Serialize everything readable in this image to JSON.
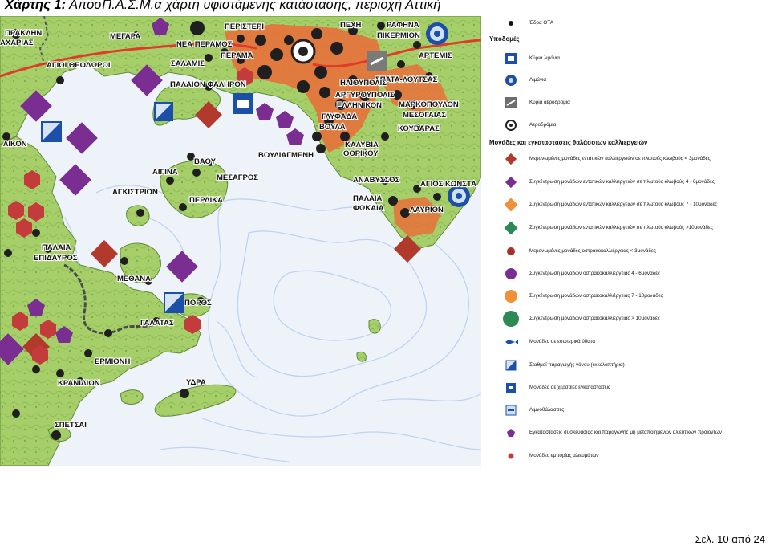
{
  "page": {
    "title_prefix": "Χάρτης 1:",
    "title_text": " ΑπόσΠ.Α.Σ.Μ.α χάρτη υφιστάμενης κατάστασης, περιοχή Αττική",
    "page_number": "Σελ. 10 από 24"
  },
  "colors": {
    "sea": "#eef3fa",
    "land_light": "#a6cf6a",
    "land_dark": "#7fae4c",
    "urban": "#e8703a",
    "diamond_red": "#b23a2c",
    "diamond_purple": "#7b2e91",
    "diamond_orange": "#f0913a",
    "diamond_green": "#2e8a55",
    "dot_red": "#a8302a",
    "dot_purple": "#7b2e91",
    "dot_orange": "#f0913a",
    "dot_green": "#2e8a55",
    "port_blue": "#1c4fa8"
  },
  "map": {
    "places": [
      {
        "name": "ΠΡΑΚΛΗΝ"
      },
      {
        "name": "ΑΧΑΡΙΑΣ"
      },
      {
        "name": "ΜΕΓΑΡΑ"
      },
      {
        "name": "ΝΕΑ ΠΕΡΑΜΟΣ"
      },
      {
        "name": "ΠΕΡΙΣΤΕΡΙ"
      },
      {
        "name": "ΠΕΧΗ"
      },
      {
        "name": "ΡΑΦΗΝΑ"
      },
      {
        "name": "ΠΙΚΕΡΜΙΟΝ"
      },
      {
        "name": "ΑΡΤΕΜΙΣ"
      },
      {
        "name": "ΑΓΙΟΙ ΘΕΟΔΩΡΟΙ"
      },
      {
        "name": "ΣΑΛΑΜΙΣ"
      },
      {
        "name": "ΠΕΡΑΜΑ"
      },
      {
        "name": "ΣΠΑΤΑ-ΛΟΥΤΣΑΣ"
      },
      {
        "name": "ΗΛΙΟΥΠΟΛΙΣ"
      },
      {
        "name": "ΠΑΛΑΙΟΝ ΦΑΛΗΡΟΝ"
      },
      {
        "name": "ΑΡΓΥΡΟΥΠΟΛΙΣ"
      },
      {
        "name": "ΕΛΛΗΝΙΚΟΝ"
      },
      {
        "name": "ΜΑΡΚΟΠΟΥΛΟΝ"
      },
      {
        "name": "ΜΕΣΟΓΑΙΑΣ"
      },
      {
        "name": "ΓΛΥΦΑΔΑ"
      },
      {
        "name": "ΒΟΥΛΑ"
      },
      {
        "name": "ΚΟΥΒΑΡΑΣ"
      },
      {
        "name": "ΚΑΛΥΒΙΑ"
      },
      {
        "name": "ΘΟΡΙΚΟΥ"
      },
      {
        "name": "ΒΟΥΛΙΑΓΜΕΝΗ"
      },
      {
        "name": "ΒΑΘΥ"
      },
      {
        "name": "ΑΙΓΙΝΑ"
      },
      {
        "name": "ΜΕΣΑΓΡΟΣ"
      },
      {
        "name": "ΑΓΚΙΣΤΡΙΟΝ"
      },
      {
        "name": "ΠΕΡΔΙΚΑ"
      },
      {
        "name": "ΑΝΑΒΥΣΣΟΣ"
      },
      {
        "name": "ΑΓΙΟΣ ΚΩΝΣΤΑ"
      },
      {
        "name": "ΠΑΛΑΙΑ"
      },
      {
        "name": "ΦΩΚΑΙΑ"
      },
      {
        "name": "ΛΑΥΡΙΟΝ"
      },
      {
        "name": "ΠΑΛΑΙΑ"
      },
      {
        "name": "ΕΠΙΔΑΥΡΟΣ"
      },
      {
        "name": "ΜΕΘΑΝΑ"
      },
      {
        "name": "ΠΟΡΟΣ"
      },
      {
        "name": "ΓΑΛΑΤΑΣ"
      },
      {
        "name": "ΕΡΜΙΟΝΗ"
      },
      {
        "name": "ΚΡΑΝΙΔΙΟΝ"
      },
      {
        "name": "ΥΔΡΑ"
      },
      {
        "name": "ΣΠΕΤΣΑΙ"
      },
      {
        "name": "ΛΙΚΟΝ"
      }
    ]
  },
  "legend": {
    "items_top": [
      {
        "icon": "seat-dot-icon",
        "label": "Έδρα ΟΤΑ"
      }
    ],
    "infra_heading": "Υποδομές",
    "infra_items": [
      {
        "icon": "main-port-icon",
        "label": "Κύρια λιμάνια"
      },
      {
        "icon": "port-icon",
        "label": "Λιμάνια"
      },
      {
        "icon": "main-airport-icon",
        "label": "Κύρια αεροδρόμια"
      },
      {
        "icon": "airport-icon",
        "label": "Αεροδρόμια"
      }
    ],
    "aqua_heading": "Μονάδες και εγκαταστάσεις θαλάσσιων καλλιεργειών",
    "aqua_items": [
      {
        "icon": "diamond-red-icon",
        "label": "Μεμονωμένες μονάδες εντατικών καλλιεργειών σε πλωτούς κλωβούς < 3μονάδες"
      },
      {
        "icon": "diamond-purple-icon",
        "label": "Συγκέντρωση μονάδων εντατικών καλλιεργειών σε πλωτούς κλωβούς 4 - 6μονάδες"
      },
      {
        "icon": "diamond-orange-icon",
        "label": "Συγκέντρωση μονάδων εντατικών καλλιεργειών σε πλωτούς κλωβούς 7 - 10μονάδες"
      },
      {
        "icon": "diamond-green-icon",
        "label": "Συγκέντρωση μονάδων εντατικών καλλιεργειών σε πλωτούς κλωβούς >10μονάδες"
      },
      {
        "icon": "circle-red-icon",
        "label": "Μεμονωμένες μονάδες οστρακοκαλλιέργειας < 3μονάδες"
      },
      {
        "icon": "circle-purple-icon",
        "label": "Συγκέντρωση μονάδων οστρακοκαλλιέργειας 4 - 6μονάδες"
      },
      {
        "icon": "circle-orange-icon",
        "label": "Συγκέντρωση μονάδων οστρακοκαλλιέργειας 7 - 10μονάδες"
      },
      {
        "icon": "circle-green-icon",
        "label": "Συγκέντρωση μονάδων οστρακοκαλλιέργειας > 10μονάδες"
      },
      {
        "icon": "fish-icon",
        "label": "Μονάδες σε εσωτερικά ύδατα"
      },
      {
        "icon": "hatchery-icon",
        "label": "Σταθμοί παραγωγής γόνου (εκκολαπτήρια)"
      },
      {
        "icon": "land-unit-icon",
        "label": "Μονάδες σε χερσαίες εγκαταστάσεις"
      },
      {
        "icon": "lagoon-icon",
        "label": "Λιμνοθάλασσες"
      },
      {
        "icon": "pentagon-purple-icon",
        "label": "Εγκαταστάσεις συσκευασίας και παραγωγής μη μεταποιημένων αλιευτικών προϊόντων"
      },
      {
        "icon": "dot-red-icon",
        "label": "Μονάδες εμπορίας αλιευμάτων"
      }
    ]
  }
}
